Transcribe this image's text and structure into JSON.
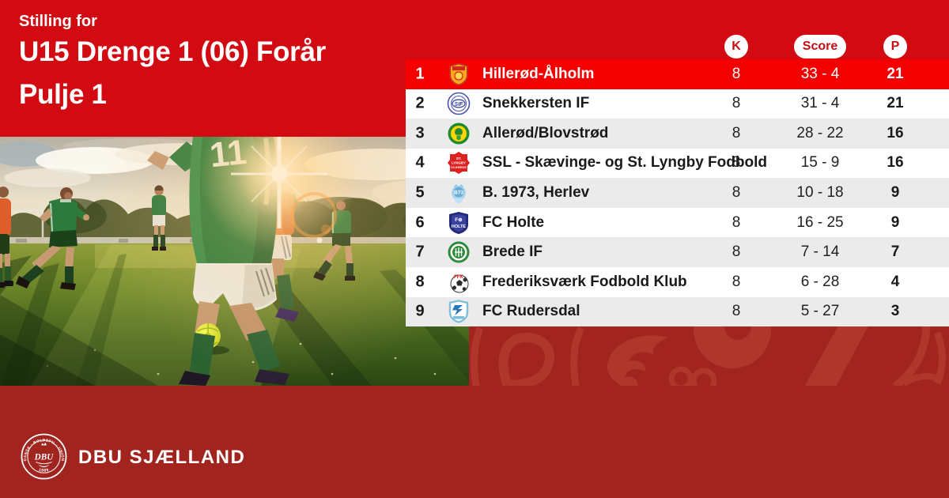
{
  "colors": {
    "band_red": "#d20a11",
    "highlight_red": "#f50000",
    "background_red": "#a2241f",
    "watermark_red": "#b0362c",
    "pill_text_red": "#c90c12",
    "row_alt_gray": "#ebebeb"
  },
  "header": {
    "pretitle": "Stilling for",
    "title_line1": "U15 Drenge 1 (06) Forår",
    "title_line2": "Pulje 1"
  },
  "table": {
    "columns": [
      {
        "key": "k",
        "label": "K"
      },
      {
        "key": "score",
        "label": "Score"
      },
      {
        "key": "p",
        "label": "P"
      }
    ],
    "rows": [
      {
        "pos": "1",
        "team": "Hillerød-Ålholm",
        "k": "8",
        "score": "33 - 4",
        "p": "21",
        "highlight": true,
        "logo": "hilleroed-aalholm"
      },
      {
        "pos": "2",
        "team": "Snekkersten IF",
        "k": "8",
        "score": "31 - 4",
        "p": "21",
        "highlight": false,
        "logo": "snekkersten-if"
      },
      {
        "pos": "3",
        "team": "Allerød/Blovstrød",
        "k": "8",
        "score": "28 - 22",
        "p": "16",
        "highlight": false,
        "logo": "alleroed-blovstroed"
      },
      {
        "pos": "4",
        "team": "SSL - Skævinge- og St. Lyngby Fodbold",
        "k": "8",
        "score": "15 - 9",
        "p": "16",
        "highlight": false,
        "logo": "ssl"
      },
      {
        "pos": "5",
        "team": "B. 1973, Herlev",
        "k": "8",
        "score": "10 - 18",
        "p": "9",
        "highlight": false,
        "logo": "b1973-herlev"
      },
      {
        "pos": "6",
        "team": "FC Holte",
        "k": "8",
        "score": "16 - 25",
        "p": "9",
        "highlight": false,
        "logo": "fc-holte"
      },
      {
        "pos": "7",
        "team": "Brede IF",
        "k": "8",
        "score": "7 - 14",
        "p": "7",
        "highlight": false,
        "logo": "brede-if"
      },
      {
        "pos": "8",
        "team": "Frederiksværk Fodbold Klub",
        "k": "8",
        "score": "6 - 28",
        "p": "4",
        "highlight": false,
        "logo": "frederiksvaerk"
      },
      {
        "pos": "9",
        "team": "FC Rudersdal",
        "k": "8",
        "score": "5 - 27",
        "p": "3",
        "highlight": false,
        "logo": "fc-rudersdal"
      }
    ]
  },
  "footer": {
    "brand": "DBU SJÆLLAND",
    "seal_center": "DBU",
    "seal_ring_text": "DANSK · BOLDSPIL · UNION",
    "seal_year": "1889"
  }
}
